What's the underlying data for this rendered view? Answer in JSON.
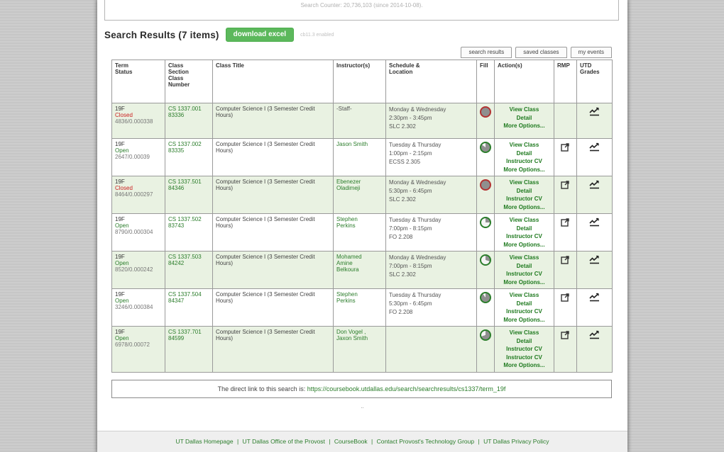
{
  "colors": {
    "accent_green": "#2b7d2b",
    "button_green": "#5cb85c",
    "closed_red": "#cc2020",
    "row_alt_bg": "#e9f2e2",
    "pie_fill_gray": "#8f8f8f",
    "pie_ring_red": "#b23333",
    "pie_ring_green": "#2b7d2b"
  },
  "page": {
    "search_counter": "Search Counter: 20,736,103 (since 2014-10-08).",
    "heading": "Search Results (7 items)",
    "download_button": "download excel",
    "enabled_note": "cb11.3 enabled",
    "tabs": [
      "search results",
      "saved classes",
      "my events"
    ],
    "direct_link_prefix": "The direct link to this search is: ",
    "direct_link_url": "https://coursebook.utdallas.edu/search/searchresults/cs1337/term_19f",
    "ellipsis": "..",
    "footer_separator": "|",
    "footer_links": [
      "UT Dallas Homepage",
      "UT Dallas Office of the Provost",
      "CourseBook",
      "Contact Provost's Technology Group",
      "UT Dallas Privacy Policy"
    ]
  },
  "table": {
    "headers": [
      "Term\nStatus",
      "Class\nSection\nClass\nNumber",
      "Class Title",
      "Instructor(s)",
      "Schedule &\nLocation",
      "Fill",
      "Action(s)",
      "RMP",
      "UTD\nGrades"
    ],
    "rows": [
      {
        "term": "19F",
        "status": "Closed",
        "debug": "4836/0.000338",
        "section": "CS 1337.001",
        "class_number": "83336",
        "title": "Computer Science I (3 Semester Credit Hours)",
        "instructors": [
          "-Staff-"
        ],
        "instructor_link": false,
        "schedule": [
          "Monday & Wednesday",
          "2:30pm - 3:45pm",
          "SLC 2.302"
        ],
        "fill": {
          "percent": 100,
          "ring": "#b23333"
        },
        "actions": [
          "View Class",
          "Detail",
          "More Options..."
        ],
        "rmp": false,
        "grades": true
      },
      {
        "term": "19F",
        "status": "Open",
        "debug": "2647/0.00039",
        "section": "CS 1337.002",
        "class_number": "83335",
        "title": "Computer Science I (3 Semester Credit Hours)",
        "instructors": [
          "Jason Smith"
        ],
        "instructor_link": true,
        "schedule": [
          "Tuesday & Thursday",
          "1:00pm - 2:15pm",
          "ECSS 2.305"
        ],
        "fill": {
          "percent": 85,
          "ring": "#2b7d2b"
        },
        "actions": [
          "View Class",
          "Detail",
          "Instructor CV",
          "More Options..."
        ],
        "rmp": true,
        "grades": true
      },
      {
        "term": "19F",
        "status": "Closed",
        "debug": "8464/0.000297",
        "section": "CS 1337.501",
        "class_number": "84346",
        "title": "Computer Science I (3 Semester Credit Hours)",
        "instructors": [
          "Ebenezer",
          "Oladimeji"
        ],
        "instructor_link": true,
        "schedule": [
          "Monday & Wednesday",
          "5:30pm - 6:45pm",
          "SLC 2.302"
        ],
        "fill": {
          "percent": 100,
          "ring": "#b23333"
        },
        "actions": [
          "View Class",
          "Detail",
          "Instructor CV",
          "More Options..."
        ],
        "rmp": true,
        "grades": true
      },
      {
        "term": "19F",
        "status": "Open",
        "debug": "8790/0.000304",
        "section": "CS 1337.502",
        "class_number": "83743",
        "title": "Computer Science I (3 Semester Credit Hours)",
        "instructors": [
          "Stephen",
          "Perkins"
        ],
        "instructor_link": true,
        "schedule": [
          "Tuesday & Thursday",
          "7:00pm - 8:15pm",
          "FO 2.208"
        ],
        "fill": {
          "percent": 25,
          "ring": "#2b7d2b"
        },
        "actions": [
          "View Class",
          "Detail",
          "Instructor CV",
          "More Options..."
        ],
        "rmp": true,
        "grades": true
      },
      {
        "term": "19F",
        "status": "Open",
        "debug": "8520/0.000242",
        "section": "CS 1337.503",
        "class_number": "84242",
        "title": "Computer Science I (3 Semester Credit Hours)",
        "instructors": [
          "Mohamed",
          "Amine",
          "Belkoura"
        ],
        "instructor_link": true,
        "schedule": [
          "Monday & Wednesday",
          "7:00pm - 8:15pm",
          "SLC 2.302"
        ],
        "fill": {
          "percent": 30,
          "ring": "#2b7d2b"
        },
        "actions": [
          "View Class",
          "Detail",
          "Instructor CV",
          "More Options..."
        ],
        "rmp": true,
        "grades": true
      },
      {
        "term": "19F",
        "status": "Open",
        "debug": "3246/0.000384",
        "section": "CS 1337.504",
        "class_number": "84347",
        "title": "Computer Science I (3 Semester Credit Hours)",
        "instructors": [
          "Stephen",
          "Perkins"
        ],
        "instructor_link": true,
        "schedule": [
          "Tuesday & Thursday",
          "5:30pm - 6:45pm",
          "FO 2.208"
        ],
        "fill": {
          "percent": 90,
          "ring": "#2b7d2b"
        },
        "actions": [
          "View Class",
          "Detail",
          "Instructor CV",
          "More Options..."
        ],
        "rmp": true,
        "grades": true
      },
      {
        "term": "19F",
        "status": "Open",
        "debug": "6978/0.00072",
        "section": "CS 1337.701",
        "class_number": "84599",
        "title": "Computer Science I (3 Semester Credit Hours)",
        "instructors": [
          "Don Vogel ,",
          "Jaxon Smith"
        ],
        "instructor_link": true,
        "schedule": [],
        "fill": {
          "percent": 70,
          "ring": "#2b7d2b"
        },
        "actions": [
          "View Class",
          "Detail",
          "Instructor CV",
          "Instructor CV",
          "More Options..."
        ],
        "rmp": true,
        "grades": true
      }
    ]
  }
}
